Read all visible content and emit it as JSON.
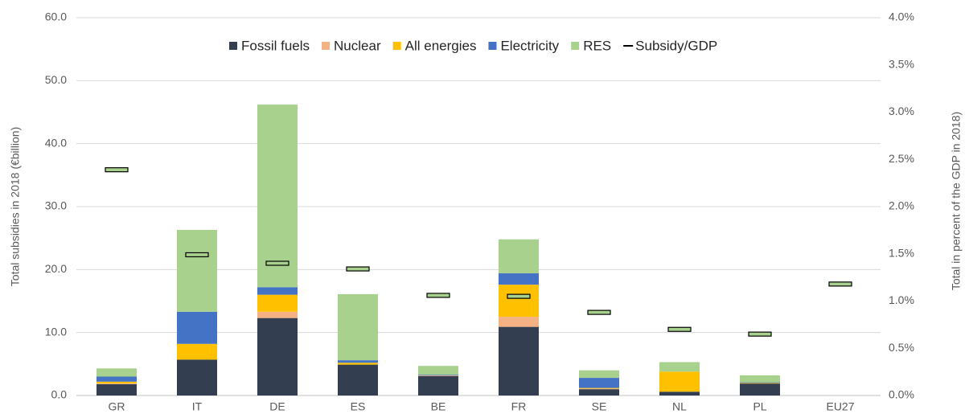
{
  "chart_data": {
    "type": "bar",
    "stacked": true,
    "categories": [
      "GR",
      "IT",
      "DE",
      "ES",
      "BE",
      "FR",
      "SE",
      "NL",
      "PL",
      "EU27"
    ],
    "y_label": "Total subsidies in 2018 (€billion)",
    "y2_label": "Total in percent of the GDP in 2018)",
    "series": [
      {
        "name": "Fossil fuels",
        "color": "#333f50",
        "values": [
          1.8,
          5.7,
          12.3,
          4.9,
          3.1,
          10.9,
          1.0,
          0.6,
          1.9,
          null
        ]
      },
      {
        "name": "Nuclear",
        "color": "#f4b183",
        "values": [
          0.1,
          0,
          1.0,
          0,
          0.1,
          1.6,
          0.1,
          0,
          0,
          null
        ]
      },
      {
        "name": "All energies",
        "color": "#ffc000",
        "values": [
          0.3,
          2.5,
          2.7,
          0.3,
          0,
          5.1,
          0.1,
          3.2,
          0.1,
          null
        ]
      },
      {
        "name": "Electricity",
        "color": "#4472c4",
        "values": [
          0.8,
          5.1,
          1.2,
          0.4,
          0.1,
          1.8,
          1.6,
          0,
          0.1,
          null
        ]
      },
      {
        "name": "RES",
        "color": "#a9d18e",
        "values": [
          1.3,
          13.0,
          29.0,
          10.5,
          1.4,
          5.4,
          1.2,
          1.5,
          1.1,
          null
        ]
      },
      {
        "name": "Subsidy/GDP",
        "color": "#a9d18e",
        "axis": "y2",
        "values": [
          2.39,
          1.49,
          1.4,
          1.34,
          1.06,
          1.05,
          0.88,
          0.7,
          0.65,
          1.18
        ]
      }
    ],
    "ylim": [
      0,
      60
    ],
    "yticks": [
      {
        "value": 0,
        "label": "0.0"
      },
      {
        "value": 10,
        "label": "10.0"
      },
      {
        "value": 20,
        "label": "20.0"
      },
      {
        "value": 30,
        "label": "30.0"
      },
      {
        "value": 40,
        "label": "40.0"
      },
      {
        "value": 50,
        "label": "50.0"
      },
      {
        "value": 60,
        "label": "60.0"
      }
    ],
    "y2lim": [
      0,
      4
    ],
    "y2ticks": [
      {
        "value": 0,
        "label": "0.0%"
      },
      {
        "value": 0.5,
        "label": "0.5%"
      },
      {
        "value": 1,
        "label": "1.0%"
      },
      {
        "value": 1.5,
        "label": "1.5%"
      },
      {
        "value": 2,
        "label": "2.0%"
      },
      {
        "value": 2.5,
        "label": "2.5%"
      },
      {
        "value": 3,
        "label": "3.0%"
      },
      {
        "value": 3.5,
        "label": "3.5%"
      },
      {
        "value": 4,
        "label": "4.0%"
      }
    ],
    "grid": true,
    "legend": "top"
  }
}
